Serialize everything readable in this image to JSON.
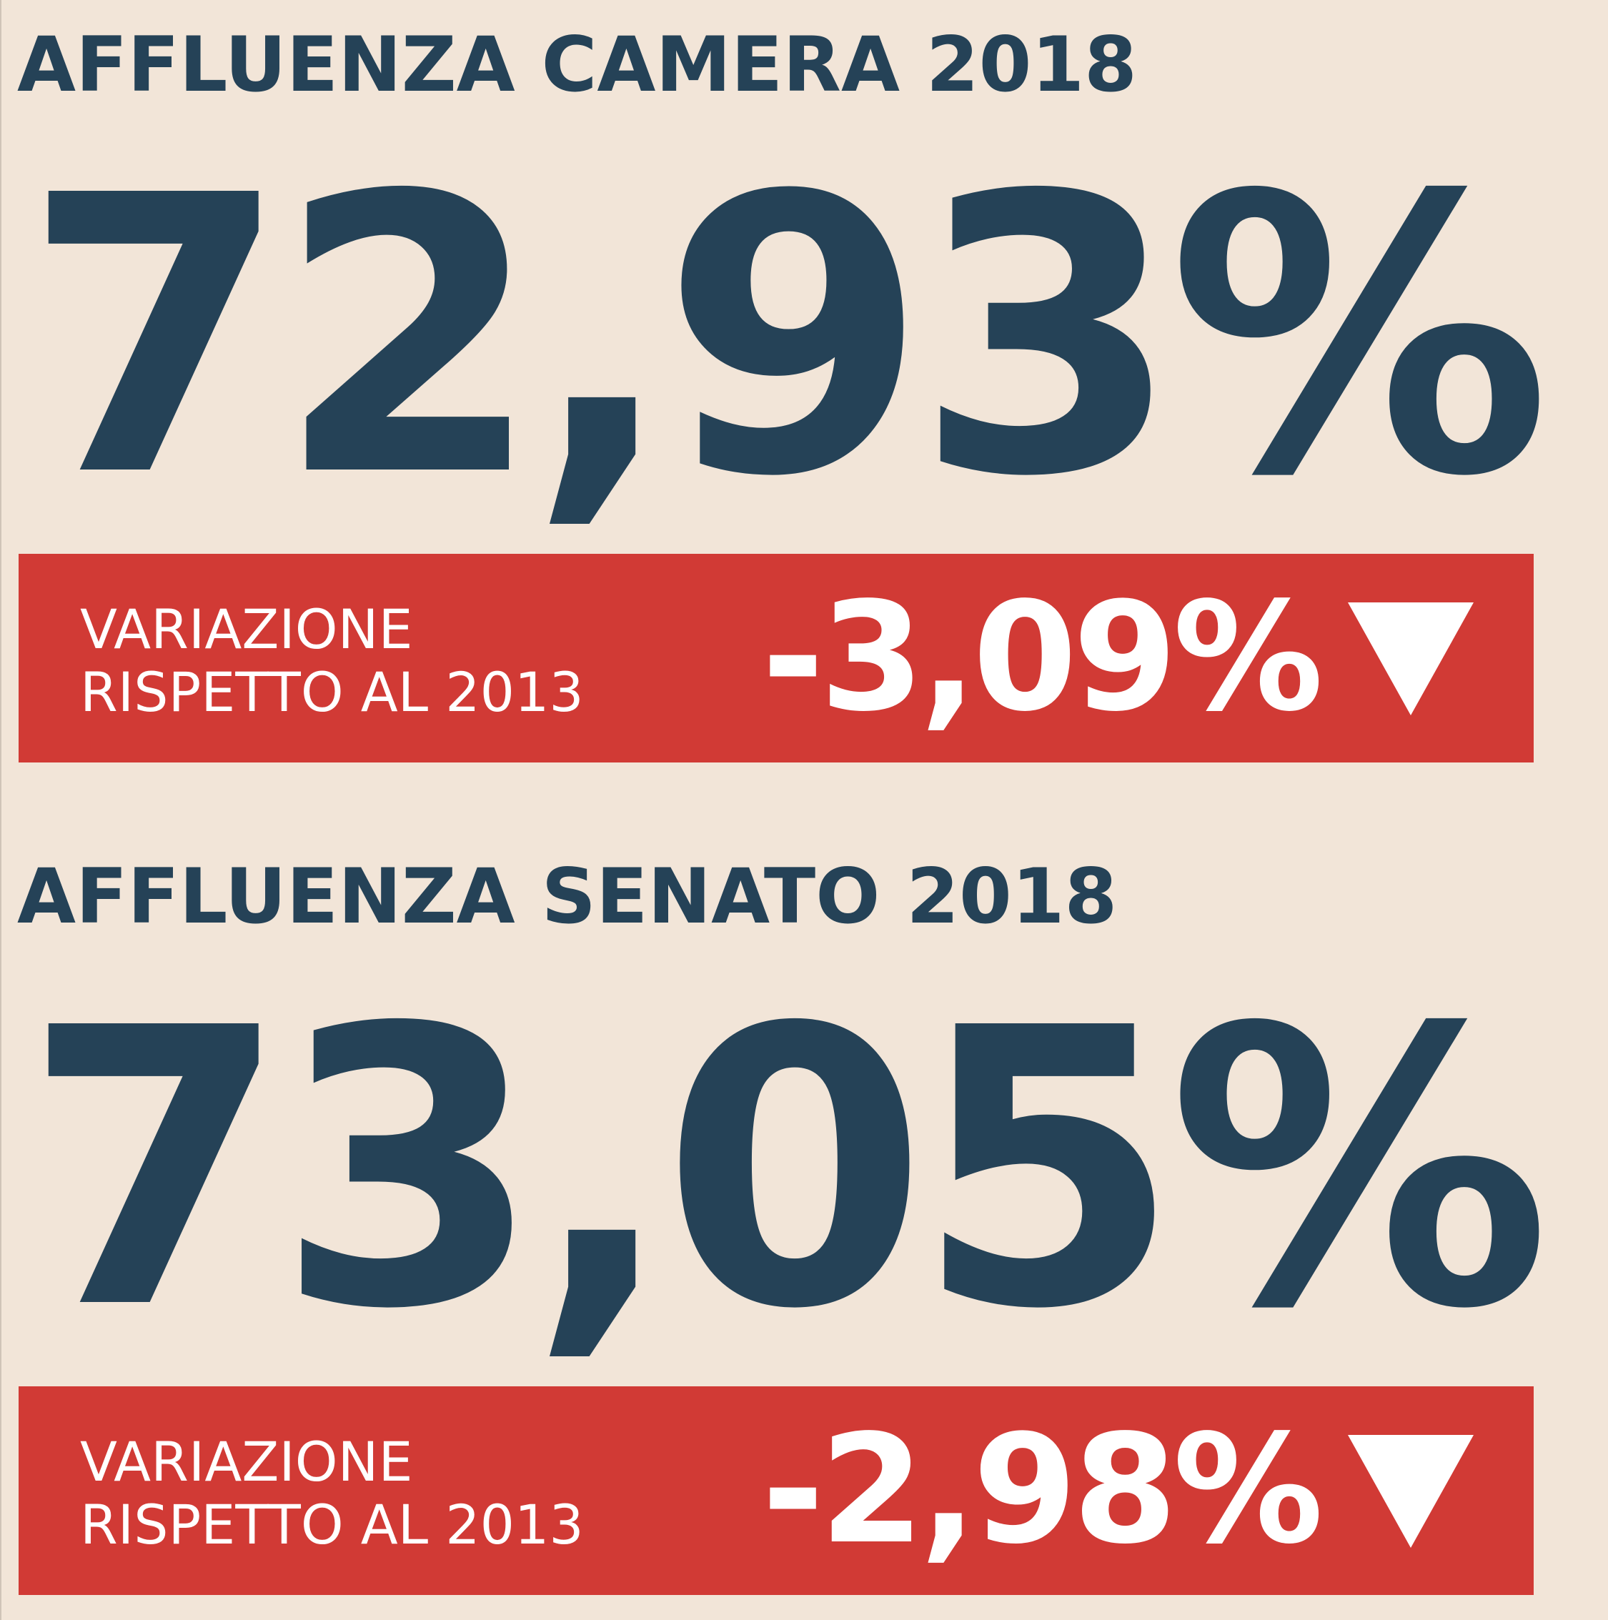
{
  "camera": {
    "title": "AFFLUENZA CAMERA 2018",
    "value": "72,93%",
    "change_label_line1": "VARIAZIONE",
    "change_label_line2": "RISPETTO AL 2013",
    "change_value": "-3,09%",
    "trend_icon": "triangle-down-icon"
  },
  "senato": {
    "title": "AFFLUENZA SENATO 2018",
    "value": "73,05%",
    "change_label_line1": "VARIAZIONE",
    "change_label_line2": "RISPETTO AL 2013",
    "change_value": "-2,98%",
    "trend_icon": "triangle-down-icon"
  },
  "colors": {
    "background": "#f2e5d8",
    "primary_text": "#254257",
    "band": "#d13a35",
    "band_text": "#ffffff"
  }
}
